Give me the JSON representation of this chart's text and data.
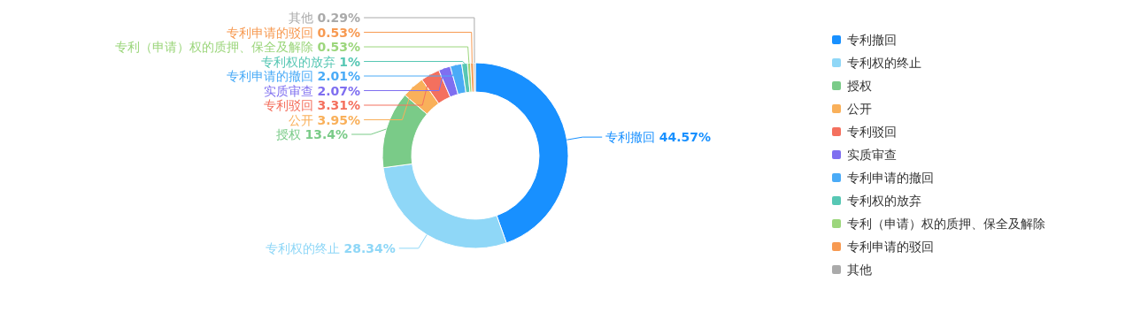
{
  "chart_data": {
    "type": "donut",
    "categories": [
      "专利撤回",
      "专利权的终止",
      "授权",
      "公开",
      "专利驳回",
      "实质审查",
      "专利申请的撤回",
      "专利权的放弃",
      "专利（申请）权的质押、保全及解除",
      "专利申请的驳回",
      "其他"
    ],
    "values": [
      44.57,
      28.34,
      13.4,
      3.95,
      3.31,
      2.07,
      2.01,
      1,
      0.53,
      0.53,
      0.29
    ],
    "colors": [
      "#1890ff",
      "#8fd7f7",
      "#7acb88",
      "#f9b05a",
      "#f4705e",
      "#7f6ff0",
      "#4aabf7",
      "#57c7b4",
      "#9cd67c",
      "#f79a52",
      "#aaaaaa"
    ],
    "value_labels": [
      "44.57%",
      "28.34%",
      "13.4%",
      "3.95%",
      "3.31%",
      "2.07%",
      "2.01%",
      "1%",
      "0.53%",
      "0.53%",
      "0.29%"
    ],
    "legend": "right"
  }
}
